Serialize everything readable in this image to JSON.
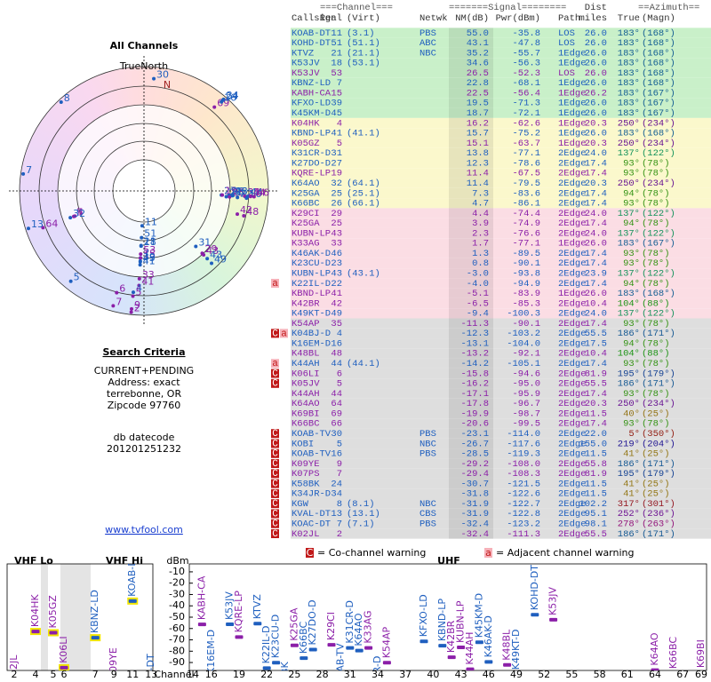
{
  "left": {
    "title": "All Channels",
    "north_label": "TrueNorth",
    "north": "N",
    "criteria_title": "Search Criteria",
    "criteria": [
      "CURRENT+PENDING",
      "Address: exact",
      "terrebonne, OR",
      "Zipcode 97760"
    ],
    "db_label": "db datecode",
    "db_code": "201201251232",
    "link": "www.tvfool.com"
  },
  "table": {
    "groups": [
      "===Channel===",
      "=======Signal========",
      "==Azimuth=="
    ],
    "dist_label": "Dist",
    "headers": [
      "Callsign",
      "Real",
      "(Virt)",
      "Netwk",
      "NM(dB)",
      "Pwr(dBm)",
      "Path",
      "miles",
      "True",
      "(Magn)"
    ],
    "rows": [
      {
        "callsign": "KOAB-DT",
        "real": "11",
        "virt": "(3.1)",
        "netwk": "PBS",
        "nm": "55.0",
        "pwr": "-35.8",
        "path": "LOS",
        "dist": "26.0",
        "true": "183°",
        "magn": "(168°)",
        "color": "#1f5fbf",
        "bg": "#c9f0c9"
      },
      {
        "callsign": "KOHD-DT",
        "real": "51",
        "virt": "(51.1)",
        "netwk": "ABC",
        "nm": "43.1",
        "pwr": "-47.8",
        "path": "LOS",
        "dist": "26.0",
        "true": "183°",
        "magn": "(168°)",
        "color": "#1f5fbf",
        "bg": "#c9f0c9"
      },
      {
        "callsign": "KTVZ",
        "real": "21",
        "virt": "(21.1)",
        "netwk": "NBC",
        "nm": "35.2",
        "pwr": "-55.7",
        "path": "1Edge",
        "dist": "26.0",
        "true": "183°",
        "magn": "(168°)",
        "color": "#1f5fbf",
        "bg": "#c9f0c9"
      },
      {
        "callsign": "K53JV",
        "real": "18",
        "virt": "(53.1)",
        "nm": "34.6",
        "pwr": "-56.3",
        "path": "1Edge",
        "dist": "26.0",
        "true": "183°",
        "magn": "(168°)",
        "color": "#1f5fbf",
        "bg": "#c9f0c9"
      },
      {
        "callsign": "K53JV",
        "real": "53",
        "nm": "26.5",
        "pwr": "-52.3",
        "path": "LOS",
        "dist": "26.0",
        "true": "183°",
        "magn": "(168°)",
        "color": "#8b1fa8",
        "bg": "#c9f0c9"
      },
      {
        "callsign": "KBNZ-LD",
        "real": "7",
        "nm": "22.8",
        "pwr": "-68.1",
        "path": "1Edge",
        "dist": "26.0",
        "true": "183°",
        "magn": "(168°)",
        "color": "#1f5fbf",
        "bg": "#c9f0c9"
      },
      {
        "callsign": "KABH-CA",
        "real": "15",
        "nm": "22.5",
        "pwr": "-56.4",
        "path": "1Edge",
        "dist": "26.2",
        "true": "183°",
        "magn": "(167°)",
        "color": "#8b1fa8",
        "bg": "#c9f0c9"
      },
      {
        "callsign": "KFXO-LD",
        "real": "39",
        "nm": "19.5",
        "pwr": "-71.3",
        "path": "1Edge",
        "dist": "26.0",
        "true": "183°",
        "magn": "(167°)",
        "color": "#1f5fbf",
        "bg": "#c9f0c9"
      },
      {
        "callsign": "K45KM-D",
        "real": "45",
        "nm": "18.7",
        "pwr": "-72.1",
        "path": "1Edge",
        "dist": "26.0",
        "true": "183°",
        "magn": "(167°)",
        "color": "#1f5fbf",
        "bg": "#c9f0c9"
      },
      {
        "callsign": "K04HK",
        "real": "4",
        "nm": "16.2",
        "pwr": "-62.6",
        "path": "1Edge",
        "dist": "20.3",
        "true": "250°",
        "magn": "(234°)",
        "color": "#8b1fa8",
        "bg": "#fbf8cc"
      },
      {
        "callsign": "KBND-LP",
        "real": "41",
        "virt": "(41.1)",
        "nm": "15.7",
        "pwr": "-75.2",
        "path": "1Edge",
        "dist": "26.0",
        "true": "183°",
        "magn": "(168°)",
        "color": "#1f5fbf",
        "bg": "#fbf8cc"
      },
      {
        "callsign": "K05GZ",
        "real": "5",
        "nm": "15.1",
        "pwr": "-63.7",
        "path": "1Edge",
        "dist": "20.3",
        "true": "250°",
        "magn": "(234°)",
        "color": "#8b1fa8",
        "bg": "#fbf8cc"
      },
      {
        "callsign": "K31CR-D",
        "real": "31",
        "nm": "13.8",
        "pwr": "-77.1",
        "path": "2Edge",
        "dist": "24.0",
        "true": "137°",
        "magn": "(122°)",
        "color": "#1f5fbf",
        "bg": "#fbf8cc"
      },
      {
        "callsign": "K27DO-D",
        "real": "27",
        "nm": "12.3",
        "pwr": "-78.6",
        "path": "2Edge",
        "dist": "17.4",
        "true": "93°",
        "magn": "(78°)",
        "color": "#1f5fbf",
        "bg": "#fbf8cc"
      },
      {
        "callsign": "KQRE-LP",
        "real": "19",
        "nm": "11.4",
        "pwr": "-67.5",
        "path": "2Edge",
        "dist": "17.4",
        "true": "93°",
        "magn": "(78°)",
        "color": "#8b1fa8",
        "bg": "#fbf8cc"
      },
      {
        "callsign": "K64AO",
        "real": "32",
        "virt": "(64.1)",
        "nm": "11.4",
        "pwr": "-79.5",
        "path": "2Edge",
        "dist": "20.3",
        "true": "250°",
        "magn": "(234°)",
        "color": "#1f5fbf",
        "bg": "#fbf8cc"
      },
      {
        "callsign": "K25GA",
        "real": "25",
        "virt": "(25.1)",
        "nm": "7.3",
        "pwr": "-83.6",
        "path": "2Edge",
        "dist": "17.4",
        "true": "94°",
        "magn": "(78°)",
        "color": "#1f5fbf",
        "bg": "#fbf8cc"
      },
      {
        "callsign": "K66BC",
        "real": "26",
        "virt": "(66.1)",
        "nm": "4.7",
        "pwr": "-86.1",
        "path": "2Edge",
        "dist": "17.4",
        "true": "93°",
        "magn": "(78°)",
        "color": "#1f5fbf",
        "bg": "#fbf8cc"
      },
      {
        "callsign": "K29CI",
        "real": "29",
        "nm": "4.4",
        "pwr": "-74.4",
        "path": "2Edge",
        "dist": "24.0",
        "true": "137°",
        "magn": "(122°)",
        "color": "#8b1fa8",
        "bg": "#fbdde4"
      },
      {
        "callsign": "K25GA",
        "real": "25",
        "nm": "3.9",
        "pwr": "-74.9",
        "path": "2Edge",
        "dist": "17.4",
        "true": "94°",
        "magn": "(78°)",
        "color": "#8b1fa8",
        "bg": "#fbdde4"
      },
      {
        "callsign": "KUBN-LP",
        "real": "43",
        "nm": "2.3",
        "pwr": "-76.6",
        "path": "2Edge",
        "dist": "24.0",
        "true": "137°",
        "magn": "(122°)",
        "color": "#8b1fa8",
        "bg": "#fbdde4"
      },
      {
        "callsign": "K33AG",
        "real": "33",
        "nm": "1.7",
        "pwr": "-77.1",
        "path": "1Edge",
        "dist": "26.0",
        "true": "183°",
        "magn": "(167°)",
        "color": "#8b1fa8",
        "bg": "#fbdde4"
      },
      {
        "callsign": "K46AK-D",
        "real": "46",
        "nm": "1.3",
        "pwr": "-89.5",
        "path": "2Edge",
        "dist": "17.4",
        "true": "93°",
        "magn": "(78°)",
        "color": "#1f5fbf",
        "bg": "#fbdde4"
      },
      {
        "callsign": "K23CU-D",
        "real": "23",
        "nm": "0.8",
        "pwr": "-90.1",
        "path": "2Edge",
        "dist": "17.4",
        "true": "93°",
        "magn": "(78°)",
        "color": "#1f5fbf",
        "bg": "#fbdde4"
      },
      {
        "callsign": "KUBN-LP",
        "real": "43",
        "virt": "(43.1)",
        "nm": "-3.0",
        "pwr": "-93.8",
        "path": "2Edge",
        "dist": "23.9",
        "true": "137°",
        "magn": "(122°)",
        "color": "#1f5fbf",
        "bg": "#fbdde4"
      },
      {
        "callsign": "K22IL-D",
        "real": "22",
        "nm": "-4.0",
        "pwr": "-94.9",
        "path": "2Edge",
        "dist": "17.4",
        "true": "94°",
        "magn": "(78°)",
        "color": "#1f5fbf",
        "bg": "#fbdde4",
        "warn": [
          "a"
        ]
      },
      {
        "callsign": "KBND-LP",
        "real": "41",
        "nm": "-5.1",
        "pwr": "-83.9",
        "path": "1Edge",
        "dist": "26.0",
        "true": "183°",
        "magn": "(168°)",
        "color": "#8b1fa8",
        "bg": "#fbdde4"
      },
      {
        "callsign": "K42BR",
        "real": "42",
        "nm": "-6.5",
        "pwr": "-85.3",
        "path": "2Edge",
        "dist": "10.4",
        "true": "104°",
        "magn": "(88°)",
        "color": "#8b1fa8",
        "bg": "#fbdde4"
      },
      {
        "callsign": "K49KT-D",
        "real": "49",
        "nm": "-9.4",
        "pwr": "-100.3",
        "path": "2Edge",
        "dist": "24.0",
        "true": "137°",
        "magn": "(122°)",
        "color": "#1f5fbf",
        "bg": "#fbdde4"
      },
      {
        "callsign": "K54AP",
        "real": "35",
        "nm": "-11.3",
        "pwr": "-90.1",
        "path": "2Edge",
        "dist": "17.4",
        "true": "93°",
        "magn": "(78°)",
        "color": "#8b1fa8",
        "bg": "#dedede"
      },
      {
        "callsign": "K04BJ-D",
        "real": "4",
        "nm": "-12.3",
        "pwr": "-103.2",
        "path": "2Edge",
        "dist": "55.5",
        "true": "186°",
        "magn": "(171°)",
        "color": "#1f5fbf",
        "bg": "#dedede",
        "warn": [
          "C",
          "a"
        ]
      },
      {
        "callsign": "K16EM-D",
        "real": "16",
        "nm": "-13.1",
        "pwr": "-104.0",
        "path": "2Edge",
        "dist": "17.5",
        "true": "94°",
        "magn": "(78°)",
        "color": "#1f5fbf",
        "bg": "#dedede"
      },
      {
        "callsign": "K48BL",
        "real": "48",
        "nm": "-13.2",
        "pwr": "-92.1",
        "path": "2Edge",
        "dist": "10.4",
        "true": "104°",
        "magn": "(88°)",
        "color": "#8b1fa8",
        "bg": "#dedede"
      },
      {
        "callsign": "K44AH",
        "real": "44",
        "virt": "(44.1)",
        "nm": "-14.2",
        "pwr": "-105.1",
        "path": "2Edge",
        "dist": "17.4",
        "true": "93°",
        "magn": "(78°)",
        "color": "#1f5fbf",
        "bg": "#dedede",
        "warn": [
          "a"
        ]
      },
      {
        "callsign": "K06LI",
        "real": "6",
        "nm": "-15.8",
        "pwr": "-94.6",
        "path": "2Edge",
        "dist": "81.9",
        "true": "195°",
        "magn": "(179°)",
        "color": "#8b1fa8",
        "bg": "#dedede",
        "warn": [
          "C"
        ]
      },
      {
        "callsign": "K05JV",
        "real": "5",
        "nm": "-16.2",
        "pwr": "-95.0",
        "path": "2Edge",
        "dist": "55.5",
        "true": "186°",
        "magn": "(171°)",
        "color": "#8b1fa8",
        "bg": "#dedede",
        "warn": [
          "C"
        ]
      },
      {
        "callsign": "K44AH",
        "real": "44",
        "nm": "-17.1",
        "pwr": "-95.9",
        "path": "2Edge",
        "dist": "17.4",
        "true": "93°",
        "magn": "(78°)",
        "color": "#8b1fa8",
        "bg": "#dedede"
      },
      {
        "callsign": "K64AO",
        "real": "64",
        "nm": "-17.8",
        "pwr": "-96.7",
        "path": "2Edge",
        "dist": "20.3",
        "true": "250°",
        "magn": "(234°)",
        "color": "#8b1fa8",
        "bg": "#dedede"
      },
      {
        "callsign": "K69BI",
        "real": "69",
        "nm": "-19.9",
        "pwr": "-98.7",
        "path": "2Edge",
        "dist": "11.5",
        "true": "40°",
        "magn": "(25°)",
        "color": "#8b1fa8",
        "bg": "#dedede"
      },
      {
        "callsign": "K66BC",
        "real": "66",
        "nm": "-20.6",
        "pwr": "-99.5",
        "path": "2Edge",
        "dist": "17.4",
        "true": "93°",
        "magn": "(78°)",
        "color": "#8b1fa8",
        "bg": "#dedede"
      },
      {
        "callsign": "KOAB-TV",
        "real": "30",
        "netwk": "PBS",
        "nm": "-23.1",
        "pwr": "-114.0",
        "path": "2Edge",
        "dist": "22.0",
        "true": "5°",
        "magn": "(350°)",
        "color": "#1f5fbf",
        "bg": "#dedede",
        "warn": [
          "C"
        ]
      },
      {
        "callsign": "KOBI",
        "real": "5",
        "netwk": "NBC",
        "nm": "-26.7",
        "pwr": "-117.6",
        "path": "2Edge",
        "dist": "155.0",
        "true": "219°",
        "magn": "(204°)",
        "color": "#1f5fbf",
        "bg": "#dedede",
        "warn": [
          "C"
        ]
      },
      {
        "callsign": "KOAB-TV",
        "real": "16",
        "netwk": "PBS",
        "nm": "-28.5",
        "pwr": "-119.3",
        "path": "2Edge",
        "dist": "11.5",
        "true": "41°",
        "magn": "(25°)",
        "color": "#1f5fbf",
        "bg": "#dedede",
        "warn": [
          "C"
        ]
      },
      {
        "callsign": "K09YE",
        "real": "9",
        "nm": "-29.2",
        "pwr": "-108.0",
        "path": "2Edge",
        "dist": "55.8",
        "true": "186°",
        "magn": "(171°)",
        "color": "#8b1fa8",
        "bg": "#dedede",
        "warn": [
          "C"
        ]
      },
      {
        "callsign": "K07PS",
        "real": "7",
        "nm": "-29.4",
        "pwr": "-108.3",
        "path": "2Edge",
        "dist": "81.9",
        "true": "195°",
        "magn": "(179°)",
        "color": "#8b1fa8",
        "bg": "#dedede",
        "warn": [
          "C"
        ]
      },
      {
        "callsign": "K58BK",
        "real": "24",
        "nm": "-30.7",
        "pwr": "-121.5",
        "path": "2Edge",
        "dist": "11.5",
        "true": "41°",
        "magn": "(25°)",
        "color": "#1f5fbf",
        "bg": "#dedede",
        "warn": [
          "C"
        ]
      },
      {
        "callsign": "K34JR-D",
        "real": "34",
        "nm": "-31.8",
        "pwr": "-122.6",
        "path": "2Edge",
        "dist": "11.5",
        "true": "41°",
        "magn": "(25°)",
        "color": "#1f5fbf",
        "bg": "#dedede",
        "warn": [
          "C"
        ]
      },
      {
        "callsign": "KGW",
        "real": "8",
        "virt": "(8.1)",
        "netwk": "NBC",
        "nm": "-31.9",
        "pwr": "-122.7",
        "path": "2Edge",
        "dist": "102.2",
        "true": "317°",
        "magn": "(301°)",
        "color": "#1f5fbf",
        "bg": "#dedede",
        "warn": [
          "C"
        ]
      },
      {
        "callsign": "KVAL-DT",
        "real": "13",
        "virt": "(13.1)",
        "netwk": "CBS",
        "nm": "-31.9",
        "pwr": "-122.8",
        "path": "2Edge",
        "dist": "95.1",
        "true": "252°",
        "magn": "(236°)",
        "color": "#1f5fbf",
        "bg": "#dedede",
        "warn": [
          "C"
        ]
      },
      {
        "callsign": "KOAC-DT",
        "real": "7",
        "virt": "(7.1)",
        "netwk": "PBS",
        "nm": "-32.4",
        "pwr": "-123.2",
        "path": "2Edge",
        "dist": "98.1",
        "true": "278°",
        "magn": "(263°)",
        "color": "#1f5fbf",
        "bg": "#dedede",
        "warn": [
          "C"
        ]
      },
      {
        "callsign": "K02JL",
        "real": "2",
        "nm": "-32.4",
        "pwr": "-111.3",
        "path": "2Edge",
        "dist": "55.5",
        "true": "186°",
        "magn": "(171°)",
        "color": "#8b1fa8",
        "bg": "#dedede",
        "warn": [
          "C"
        ]
      }
    ]
  },
  "legend": [
    {
      "icon": "C",
      "text": "= Co-channel warning"
    },
    {
      "icon": "a",
      "text": "= Adjacent channel warning"
    }
  ],
  "spectrum": {
    "unit": "dBm",
    "ylim": [
      -3,
      -97
    ],
    "yticks": [
      -10,
      -20,
      -30,
      -40,
      -50,
      -60,
      -70,
      -80,
      -90
    ],
    "vhf_lo": "VHF Lo",
    "vhf_hi": "VHF Hi",
    "uhf": "UHF",
    "channel_label": "Channel",
    "vhf_ticks": [
      2,
      4,
      5,
      6,
      7,
      9,
      11,
      13
    ],
    "uhf_ticks": [
      14,
      16,
      19,
      22,
      25,
      28,
      31,
      34,
      37,
      40,
      43,
      46,
      49,
      52,
      55,
      58,
      61,
      64,
      67,
      69
    ]
  }
}
